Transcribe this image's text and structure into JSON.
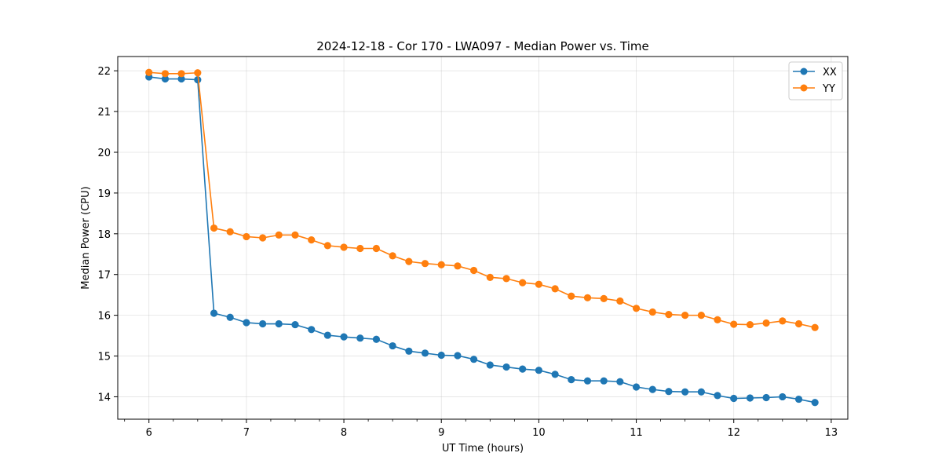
{
  "chart_data": {
    "type": "line",
    "title": "2024-12-18 - Cor 170 - LWA097 - Median Power vs. Time",
    "xlabel": "UT Time (hours)",
    "ylabel": "Median Power (CPU)",
    "xlim": [
      5.68,
      13.17
    ],
    "ylim": [
      13.45,
      22.35
    ],
    "xticks": [
      6,
      7,
      8,
      9,
      10,
      11,
      12,
      13
    ],
    "yticks": [
      14,
      15,
      16,
      17,
      18,
      19,
      20,
      21,
      22
    ],
    "grid": true,
    "legend_position": "top-right",
    "x": [
      6.0,
      6.167,
      6.333,
      6.5,
      6.667,
      6.833,
      7.0,
      7.167,
      7.333,
      7.5,
      7.667,
      7.833,
      8.0,
      8.167,
      8.333,
      8.5,
      8.667,
      8.833,
      9.0,
      9.167,
      9.333,
      9.5,
      9.667,
      9.833,
      10.0,
      10.167,
      10.333,
      10.5,
      10.667,
      10.833,
      11.0,
      11.167,
      11.333,
      11.5,
      11.667,
      11.833,
      12.0,
      12.167,
      12.333,
      12.5,
      12.667,
      12.833
    ],
    "series": [
      {
        "name": "XX",
        "color": "#1f77b4",
        "values": [
          21.85,
          21.8,
          21.8,
          21.78,
          16.05,
          15.95,
          15.82,
          15.79,
          15.79,
          15.77,
          15.65,
          15.51,
          15.47,
          15.44,
          15.41,
          15.25,
          15.12,
          15.07,
          15.02,
          15.01,
          14.92,
          14.78,
          14.73,
          14.68,
          14.65,
          14.55,
          14.42,
          14.39,
          14.39,
          14.37,
          14.24,
          14.18,
          14.13,
          14.12,
          14.12,
          14.03,
          13.96,
          13.97,
          13.98,
          14.0,
          13.94,
          13.86
        ]
      },
      {
        "name": "YY",
        "color": "#ff7f0e",
        "values": [
          21.96,
          21.93,
          21.93,
          21.95,
          18.14,
          18.05,
          17.93,
          17.9,
          17.97,
          17.97,
          17.85,
          17.71,
          17.67,
          17.64,
          17.64,
          17.46,
          17.32,
          17.27,
          17.24,
          17.21,
          17.1,
          16.93,
          16.9,
          16.8,
          16.76,
          16.65,
          16.47,
          16.43,
          16.41,
          16.35,
          16.17,
          16.08,
          16.02,
          16.0,
          16.0,
          15.89,
          15.78,
          15.77,
          15.81,
          15.86,
          15.79,
          15.7
        ]
      }
    ]
  }
}
